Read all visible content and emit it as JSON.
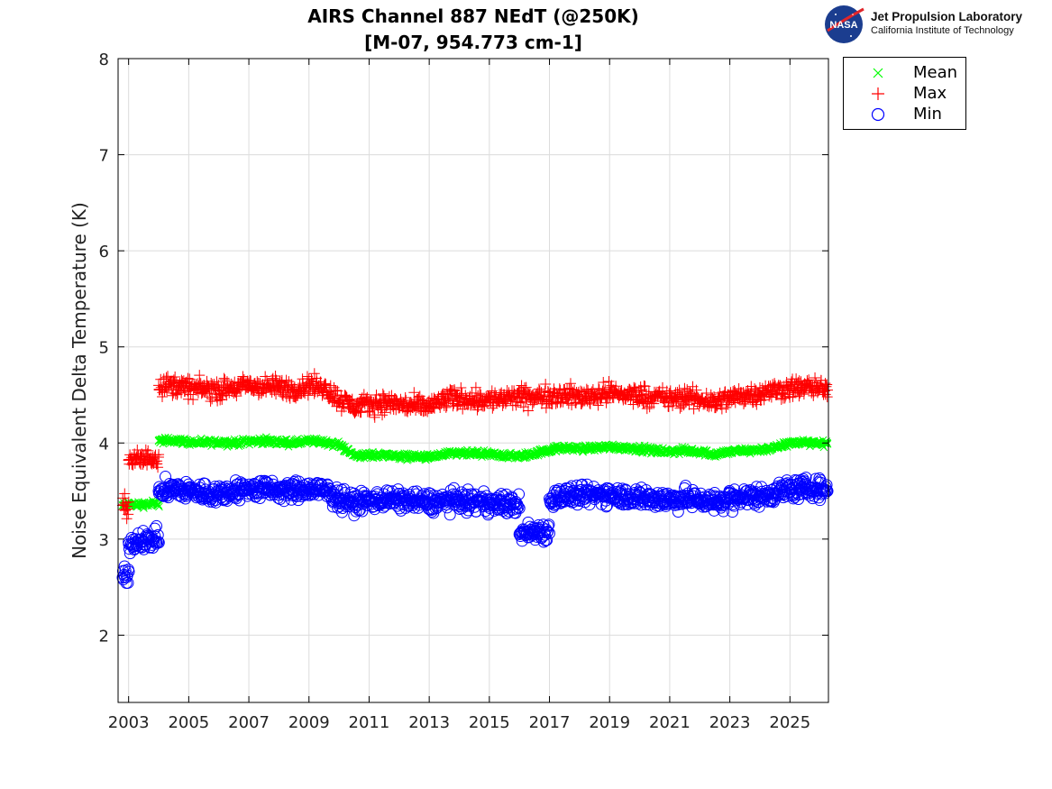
{
  "title": {
    "line1": "AIRS Channel 887 NEdT (@250K)",
    "line2": "[M-07, 954.773 cm-1]"
  },
  "logo": {
    "emblem": "NASA",
    "line1": "Jet Propulsion Laboratory",
    "line2": "California Institute of Technology"
  },
  "chart_data": {
    "type": "scatter",
    "title": "AIRS Channel 887 NEdT (@250K) [M-07, 954.773 cm-1]",
    "xlabel": "",
    "ylabel": "Noise Equivalent Delta Temperature (K)",
    "xlim": [
      2002.65,
      2026.28
    ],
    "ylim": [
      1.3,
      8
    ],
    "xticks": [
      "2003",
      "2005",
      "2007",
      "2009",
      "2011",
      "2013",
      "2015",
      "2017",
      "2019",
      "2021",
      "2023",
      "2025"
    ],
    "yticks": [
      "2",
      "3",
      "4",
      "5",
      "6",
      "7",
      "8"
    ],
    "grid": true,
    "legend_position": "outside-top-right",
    "series": [
      {
        "name": "Mean",
        "marker": "x",
        "color": "#00ff00",
        "points": [
          [
            2002.8,
            3.35
          ],
          [
            2003.0,
            3.36
          ],
          [
            2003.5,
            3.36
          ],
          [
            2003.8,
            3.37
          ],
          [
            2004.0,
            4.02
          ],
          [
            2004.5,
            4.03
          ],
          [
            2005.0,
            4.01
          ],
          [
            2005.5,
            4.0
          ],
          [
            2006.0,
            4.01
          ],
          [
            2006.5,
            4.0
          ],
          [
            2007.0,
            4.02
          ],
          [
            2007.5,
            4.02
          ],
          [
            2008.0,
            4.01
          ],
          [
            2008.5,
            4.0
          ],
          [
            2009.0,
            4.02
          ],
          [
            2009.5,
            4.01
          ],
          [
            2010.0,
            3.98
          ],
          [
            2010.5,
            3.87
          ],
          [
            2011.0,
            3.87
          ],
          [
            2011.5,
            3.88
          ],
          [
            2012.0,
            3.86
          ],
          [
            2012.5,
            3.86
          ],
          [
            2013.0,
            3.85
          ],
          [
            2013.5,
            3.88
          ],
          [
            2014.0,
            3.89
          ],
          [
            2014.5,
            3.89
          ],
          [
            2015.0,
            3.88
          ],
          [
            2015.5,
            3.87
          ],
          [
            2016.0,
            3.86
          ],
          [
            2016.5,
            3.89
          ],
          [
            2017.0,
            3.93
          ],
          [
            2017.5,
            3.95
          ],
          [
            2018.0,
            3.94
          ],
          [
            2018.5,
            3.95
          ],
          [
            2019.0,
            3.96
          ],
          [
            2019.5,
            3.95
          ],
          [
            2020.0,
            3.94
          ],
          [
            2020.5,
            3.92
          ],
          [
            2021.0,
            3.91
          ],
          [
            2021.5,
            3.92
          ],
          [
            2022.0,
            3.91
          ],
          [
            2022.5,
            3.88
          ],
          [
            2023.0,
            3.91
          ],
          [
            2023.5,
            3.92
          ],
          [
            2024.0,
            3.93
          ],
          [
            2024.5,
            3.95
          ],
          [
            2025.0,
            4.0
          ],
          [
            2025.5,
            4.01
          ],
          [
            2026.0,
            4.0
          ],
          [
            2026.25,
            3.99
          ]
        ]
      },
      {
        "name": "Max",
        "marker": "+",
        "color": "#ff0000",
        "points": [
          [
            2002.8,
            3.35
          ],
          [
            2003.0,
            3.82
          ],
          [
            2003.5,
            3.83
          ],
          [
            2003.8,
            3.85
          ],
          [
            2004.0,
            4.6
          ],
          [
            2004.5,
            4.6
          ],
          [
            2005.0,
            4.57
          ],
          [
            2005.5,
            4.56
          ],
          [
            2006.0,
            4.55
          ],
          [
            2006.5,
            4.57
          ],
          [
            2007.0,
            4.6
          ],
          [
            2007.5,
            4.58
          ],
          [
            2008.0,
            4.58
          ],
          [
            2008.5,
            4.56
          ],
          [
            2009.0,
            4.6
          ],
          [
            2009.5,
            4.58
          ],
          [
            2010.0,
            4.45
          ],
          [
            2010.5,
            4.38
          ],
          [
            2011.0,
            4.4
          ],
          [
            2011.5,
            4.42
          ],
          [
            2012.0,
            4.4
          ],
          [
            2012.5,
            4.38
          ],
          [
            2013.0,
            4.38
          ],
          [
            2013.5,
            4.45
          ],
          [
            2014.0,
            4.47
          ],
          [
            2014.5,
            4.45
          ],
          [
            2015.0,
            4.45
          ],
          [
            2015.5,
            4.46
          ],
          [
            2016.0,
            4.48
          ],
          [
            2016.5,
            4.47
          ],
          [
            2017.0,
            4.5
          ],
          [
            2017.5,
            4.5
          ],
          [
            2018.0,
            4.48
          ],
          [
            2018.5,
            4.5
          ],
          [
            2019.0,
            4.52
          ],
          [
            2019.5,
            4.5
          ],
          [
            2020.0,
            4.5
          ],
          [
            2020.5,
            4.48
          ],
          [
            2021.0,
            4.46
          ],
          [
            2021.5,
            4.47
          ],
          [
            2022.0,
            4.45
          ],
          [
            2022.5,
            4.43
          ],
          [
            2023.0,
            4.47
          ],
          [
            2023.5,
            4.5
          ],
          [
            2024.0,
            4.52
          ],
          [
            2024.5,
            4.55
          ],
          [
            2025.0,
            4.57
          ],
          [
            2025.5,
            4.58
          ],
          [
            2026.0,
            4.57
          ],
          [
            2026.25,
            4.55
          ]
        ]
      },
      {
        "name": "Min",
        "marker": "o",
        "color": "#0000ff",
        "points": [
          [
            2002.8,
            2.6
          ],
          [
            2003.0,
            2.97
          ],
          [
            2003.5,
            2.98
          ],
          [
            2003.8,
            3.0
          ],
          [
            2004.0,
            3.5
          ],
          [
            2004.5,
            3.52
          ],
          [
            2005.0,
            3.5
          ],
          [
            2005.5,
            3.48
          ],
          [
            2006.0,
            3.47
          ],
          [
            2006.5,
            3.5
          ],
          [
            2007.0,
            3.52
          ],
          [
            2007.5,
            3.52
          ],
          [
            2008.0,
            3.5
          ],
          [
            2008.5,
            3.5
          ],
          [
            2009.0,
            3.52
          ],
          [
            2009.5,
            3.5
          ],
          [
            2010.0,
            3.42
          ],
          [
            2010.5,
            3.38
          ],
          [
            2011.0,
            3.4
          ],
          [
            2011.5,
            3.42
          ],
          [
            2012.0,
            3.4
          ],
          [
            2012.5,
            3.4
          ],
          [
            2013.0,
            3.38
          ],
          [
            2013.5,
            3.4
          ],
          [
            2014.0,
            3.4
          ],
          [
            2014.5,
            3.38
          ],
          [
            2015.0,
            3.38
          ],
          [
            2015.5,
            3.36
          ],
          [
            2016.0,
            3.05
          ],
          [
            2016.5,
            3.08
          ],
          [
            2017.0,
            3.42
          ],
          [
            2017.5,
            3.45
          ],
          [
            2018.0,
            3.45
          ],
          [
            2018.5,
            3.46
          ],
          [
            2019.0,
            3.47
          ],
          [
            2019.5,
            3.45
          ],
          [
            2020.0,
            3.43
          ],
          [
            2020.5,
            3.42
          ],
          [
            2021.0,
            3.41
          ],
          [
            2021.5,
            3.42
          ],
          [
            2022.0,
            3.41
          ],
          [
            2022.5,
            3.38
          ],
          [
            2023.0,
            3.42
          ],
          [
            2023.5,
            3.44
          ],
          [
            2024.0,
            3.45
          ],
          [
            2024.5,
            3.48
          ],
          [
            2025.0,
            3.52
          ],
          [
            2025.5,
            3.53
          ],
          [
            2026.0,
            3.52
          ],
          [
            2026.25,
            3.5
          ]
        ]
      }
    ]
  }
}
